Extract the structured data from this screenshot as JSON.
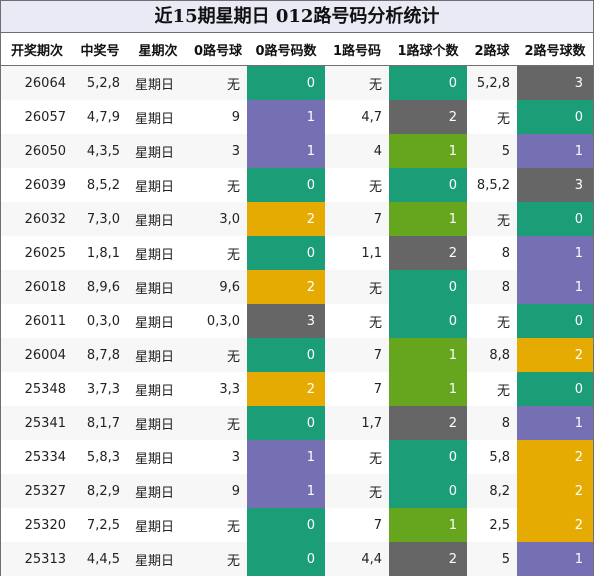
{
  "title": "近15期星期日 012路号码分析统计",
  "headers": [
    "开奖期次",
    "中奖号",
    "星期次",
    "0路号球",
    "0路号码数",
    "1路号码",
    "1路球个数",
    "2路球",
    "2路号球数"
  ],
  "colors": {
    "count_0": "#1b9e77",
    "count_1_r0": "#7570b3",
    "count_1_r1": "#66a61e",
    "count_1_r2": "#7570b3",
    "count_2_r0": "#e6ab02",
    "count_2_r1": "#666666",
    "count_2_r2": "#e6ab02",
    "count_3": "#666666"
  },
  "rows": [
    {
      "issue": "26064",
      "number": "5,2,8",
      "weekday": "星期日",
      "r0": "无",
      "r0_count": "0",
      "r1": "无",
      "r1_count": "0",
      "r2": "5,2,8",
      "r2_count": "3"
    },
    {
      "issue": "26057",
      "number": "4,7,9",
      "weekday": "星期日",
      "r0": "9",
      "r0_count": "1",
      "r1": "4,7",
      "r1_count": "2",
      "r2": "无",
      "r2_count": "0"
    },
    {
      "issue": "26050",
      "number": "4,3,5",
      "weekday": "星期日",
      "r0": "3",
      "r0_count": "1",
      "r1": "4",
      "r1_count": "1",
      "r2": "5",
      "r2_count": "1"
    },
    {
      "issue": "26039",
      "number": "8,5,2",
      "weekday": "星期日",
      "r0": "无",
      "r0_count": "0",
      "r1": "无",
      "r1_count": "0",
      "r2": "8,5,2",
      "r2_count": "3"
    },
    {
      "issue": "26032",
      "number": "7,3,0",
      "weekday": "星期日",
      "r0": "3,0",
      "r0_count": "2",
      "r1": "7",
      "r1_count": "1",
      "r2": "无",
      "r2_count": "0"
    },
    {
      "issue": "26025",
      "number": "1,8,1",
      "weekday": "星期日",
      "r0": "无",
      "r0_count": "0",
      "r1": "1,1",
      "r1_count": "2",
      "r2": "8",
      "r2_count": "1"
    },
    {
      "issue": "26018",
      "number": "8,9,6",
      "weekday": "星期日",
      "r0": "9,6",
      "r0_count": "2",
      "r1": "无",
      "r1_count": "0",
      "r2": "8",
      "r2_count": "1"
    },
    {
      "issue": "26011",
      "number": "0,3,0",
      "weekday": "星期日",
      "r0": "0,3,0",
      "r0_count": "3",
      "r1": "无",
      "r1_count": "0",
      "r2": "无",
      "r2_count": "0"
    },
    {
      "issue": "26004",
      "number": "8,7,8",
      "weekday": "星期日",
      "r0": "无",
      "r0_count": "0",
      "r1": "7",
      "r1_count": "1",
      "r2": "8,8",
      "r2_count": "2"
    },
    {
      "issue": "25348",
      "number": "3,7,3",
      "weekday": "星期日",
      "r0": "3,3",
      "r0_count": "2",
      "r1": "7",
      "r1_count": "1",
      "r2": "无",
      "r2_count": "0"
    },
    {
      "issue": "25341",
      "number": "8,1,7",
      "weekday": "星期日",
      "r0": "无",
      "r0_count": "0",
      "r1": "1,7",
      "r1_count": "2",
      "r2": "8",
      "r2_count": "1"
    },
    {
      "issue": "25334",
      "number": "5,8,3",
      "weekday": "星期日",
      "r0": "3",
      "r0_count": "1",
      "r1": "无",
      "r1_count": "0",
      "r2": "5,8",
      "r2_count": "2"
    },
    {
      "issue": "25327",
      "number": "8,2,9",
      "weekday": "星期日",
      "r0": "9",
      "r0_count": "1",
      "r1": "无",
      "r1_count": "0",
      "r2": "8,2",
      "r2_count": "2"
    },
    {
      "issue": "25320",
      "number": "7,2,5",
      "weekday": "星期日",
      "r0": "无",
      "r0_count": "0",
      "r1": "7",
      "r1_count": "1",
      "r2": "2,5",
      "r2_count": "2"
    },
    {
      "issue": "25313",
      "number": "4,4,5",
      "weekday": "星期日",
      "r0": "无",
      "r0_count": "0",
      "r1": "4,4",
      "r1_count": "2",
      "r2": "5",
      "r2_count": "1"
    }
  ]
}
